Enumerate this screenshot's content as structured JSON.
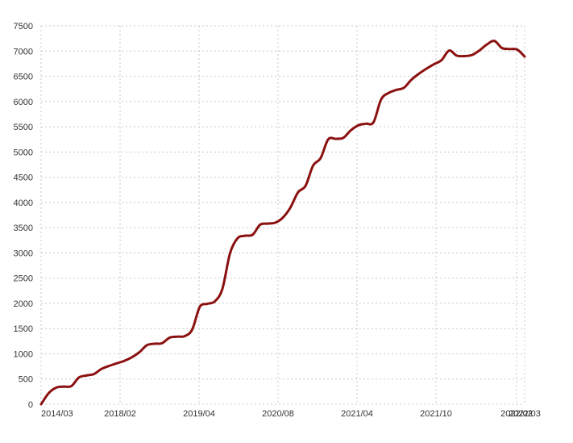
{
  "chart_data": {
    "type": "line",
    "title": "",
    "xlabel": "",
    "ylabel": "",
    "ylim": [
      0,
      7500
    ],
    "y_ticks": [
      0,
      500,
      1000,
      1500,
      2000,
      2500,
      3000,
      3500,
      4000,
      4500,
      5000,
      5500,
      6000,
      6500,
      7000,
      7500
    ],
    "x_tick_labels": [
      "2014/03",
      "2018/02",
      "2019/04",
      "2020/08",
      "2021/04",
      "2021/10",
      "2022/02",
      "2022/03"
    ],
    "grid": true,
    "legend": "none",
    "line_color": "#8b1010",
    "grid_color": "#c8c8c8",
    "series": [
      {
        "values": [
          0,
          220,
          330,
          350,
          360,
          530,
          570,
          600,
          700,
          760,
          810,
          860,
          930,
          1030,
          1170,
          1200,
          1210,
          1320,
          1340,
          1350,
          1480,
          1930,
          1990,
          2040,
          2290,
          2990,
          3290,
          3340,
          3360,
          3560,
          3580,
          3600,
          3700,
          3900,
          4200,
          4330,
          4730,
          4880,
          5250,
          5260,
          5280,
          5430,
          5530,
          5560,
          5590,
          6040,
          6170,
          6230,
          6270,
          6430,
          6550,
          6650,
          6740,
          6820,
          7010,
          6910,
          6900,
          6920,
          7010,
          7130,
          7200,
          7060,
          7040,
          7030,
          6890
        ]
      }
    ]
  }
}
